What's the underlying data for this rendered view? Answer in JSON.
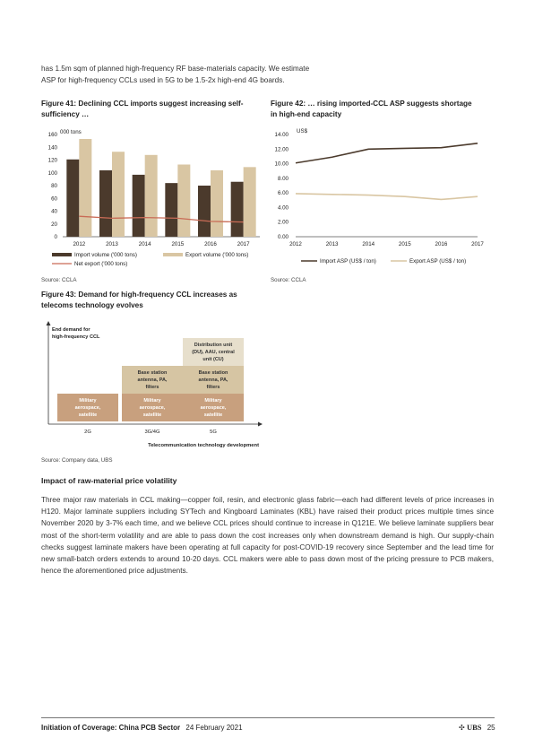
{
  "intro": {
    "line1": "has 1.5m sqm of planned high-frequency RF base-materials capacity. We estimate",
    "line2": "ASP for high-frequency CCLs used in 5G to be 1.5-2x high-end 4G boards."
  },
  "fig41": {
    "title_line1": "Figure 41: Declining CCL imports suggest increasing self-",
    "title_line2": "sufficiency …",
    "source": "Source:  CCLA"
  },
  "fig42": {
    "title_line1": "Figure 42: … rising imported-CCL ASP suggests shortage",
    "title_line2": "in high-end capacity",
    "source": "Source:  CCLA"
  },
  "fig43": {
    "title_line1": "Figure 43: Demand for high-frequency CCL increases as",
    "title_line2": "telecoms technology evolves",
    "source": "Source:  Company data, UBS",
    "ylabel_line1": "End demand for",
    "ylabel_line2": "high-frequency CCL",
    "xlabel": "Telecommunication technology development",
    "columns": [
      {
        "label": "2G",
        "blocks": [
          {
            "lines": [
              "Military",
              "aerospace,",
              "satellite"
            ],
            "kind": "base"
          }
        ]
      },
      {
        "label": "3G/4G",
        "blocks": [
          {
            "lines": [
              "Military",
              "aerospace,",
              "satellite"
            ],
            "kind": "base"
          },
          {
            "lines": [
              "Base station",
              "antenna, PA,",
              "filters"
            ],
            "kind": "mid"
          }
        ]
      },
      {
        "label": "5G",
        "blocks": [
          {
            "lines": [
              "Military",
              "aerospace,",
              "satellite"
            ],
            "kind": "base"
          },
          {
            "lines": [
              "Base station",
              "antenna, PA,",
              "filters"
            ],
            "kind": "mid"
          },
          {
            "lines": [
              "Distribution unit",
              "(DU), AAU, central",
              "unit (CU)"
            ],
            "kind": "top"
          }
        ]
      }
    ],
    "colors": {
      "base": "#c8a07e",
      "mid": "#d6c5a3",
      "top": "#e7dfcc",
      "text_base": "#ffffff",
      "text_dark": "#333333"
    }
  },
  "chart_data": [
    {
      "type": "bar",
      "unit_label": "000 tons",
      "categories": [
        "2012",
        "2013",
        "2014",
        "2015",
        "2016",
        "2017"
      ],
      "ylim": [
        0,
        160
      ],
      "yticks": [
        "0",
        "20",
        "40",
        "60",
        "80",
        "100",
        "120",
        "140",
        "160"
      ],
      "series": [
        {
          "name": "Import volume ('000 tons)",
          "type": "bar",
          "color": "#4b3a2c",
          "values": [
            121,
            104,
            97,
            84,
            80,
            86
          ]
        },
        {
          "name": "Export volume ('000 tons)",
          "type": "bar",
          "color": "#d9c6a3",
          "values": [
            153,
            133,
            128,
            113,
            104,
            109
          ]
        },
        {
          "name": "Net export ('000 tons)",
          "type": "line",
          "color": "#c96b56",
          "values": [
            32,
            29,
            30,
            29,
            24,
            23
          ]
        }
      ],
      "legend_position": "bottom"
    },
    {
      "type": "line",
      "unit_label": "US$",
      "categories": [
        "2012",
        "2013",
        "2014",
        "2015",
        "2016",
        "2017"
      ],
      "ylim": [
        0,
        14
      ],
      "yticks": [
        "0.00",
        "2.00",
        "4.00",
        "6.00",
        "8.00",
        "10.00",
        "12.00",
        "14.00"
      ],
      "series": [
        {
          "name": "Import ASP (US$ / ton)",
          "color": "#4b3a2c",
          "values": [
            10.1,
            10.9,
            12.0,
            12.1,
            12.2,
            12.8
          ]
        },
        {
          "name": "Export ASP (US$ / ton)",
          "color": "#d9c6a3",
          "values": [
            5.9,
            5.8,
            5.7,
            5.5,
            5.1,
            5.5
          ]
        }
      ],
      "legend_position": "bottom"
    }
  ],
  "section": {
    "title": "Impact of raw-material price volatility",
    "body": "Three major raw materials in CCL making—copper foil, resin, and electronic glass fabric—each had different levels of price increases in H120. Major laminate suppliers including SYTech and Kingboard Laminates (KBL) have raised their product prices multiple times since November 2020 by 3-7% each time, and we believe CCL prices should continue to increase in Q121E. We believe laminate suppliers bear most of the short-term volatility and are able to pass down the cost increases only when downstream demand is high. Our supply-chain checks suggest laminate makers have been operating at full capacity for post-COVID-19 recovery since September and the lead time for new small-batch orders extends to around 10-20 days. CCL makers were able to pass down most of the pricing pressure to PCB makers, hence the aforementioned price adjustments."
  },
  "footer": {
    "title": "Initiation of Coverage: China PCB Sector",
    "date": "24 February 2021",
    "logo": "UBS",
    "page": "25"
  }
}
